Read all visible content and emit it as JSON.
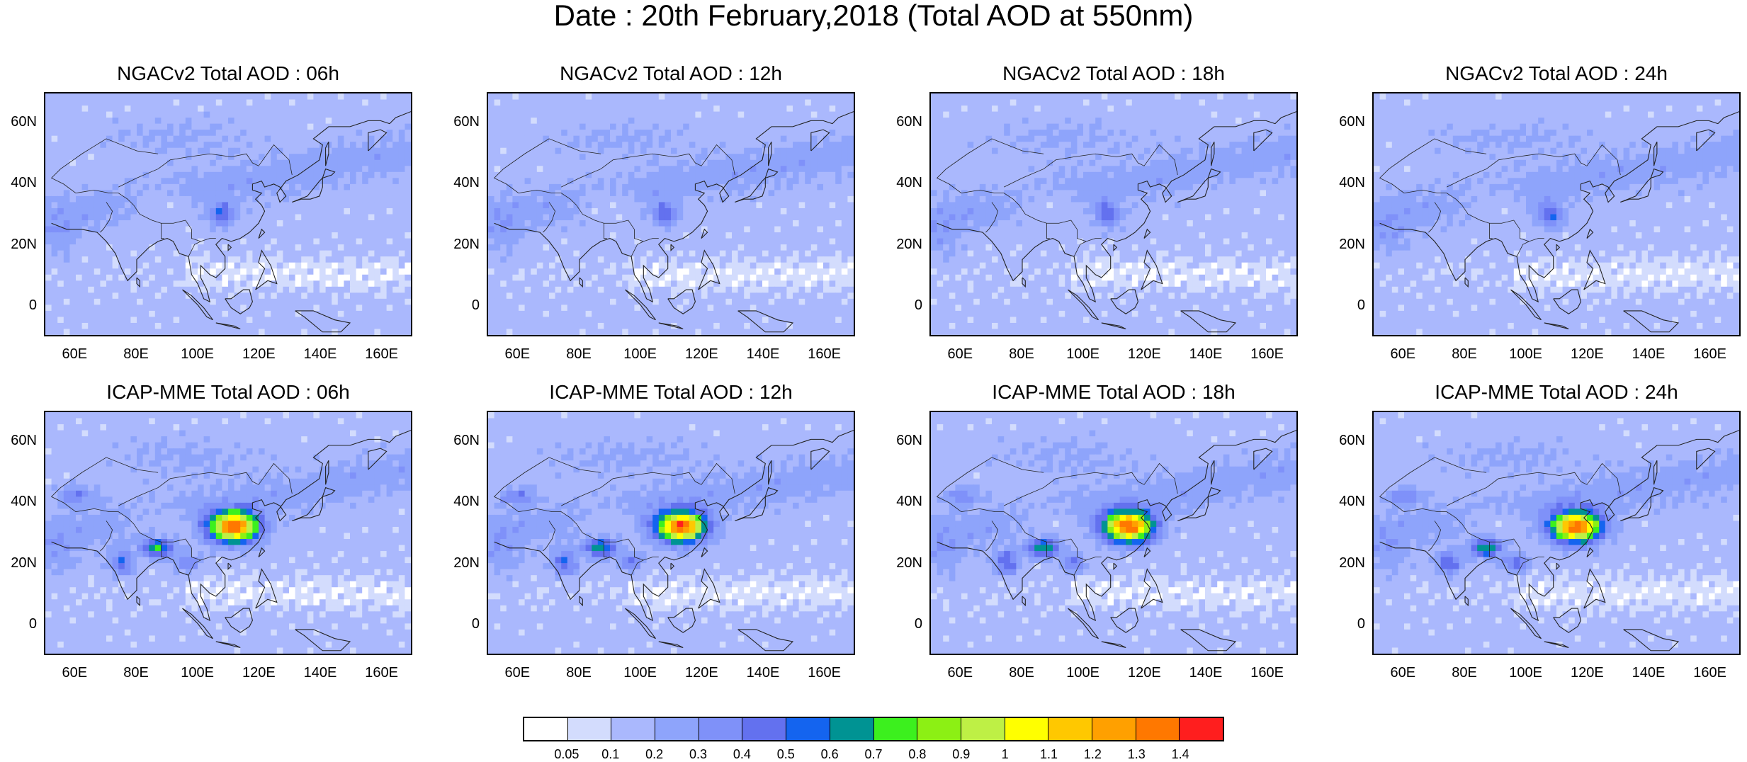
{
  "title": "Date : 20th February,2018 (Total AOD at 550nm)",
  "panels": [
    {
      "title": "NGACv2 Total AOD : 06h",
      "model": "NGACv2",
      "hour": "06h"
    },
    {
      "title": "NGACv2 Total AOD : 12h",
      "model": "NGACv2",
      "hour": "12h"
    },
    {
      "title": "NGACv2 Total AOD : 18h",
      "model": "NGACv2",
      "hour": "18h"
    },
    {
      "title": "NGACv2 Total AOD : 24h",
      "model": "NGACv2",
      "hour": "24h"
    },
    {
      "title": "ICAP-MME Total AOD : 06h",
      "model": "ICAP-MME",
      "hour": "06h"
    },
    {
      "title": "ICAP-MME Total AOD : 12h",
      "model": "ICAP-MME",
      "hour": "12h"
    },
    {
      "title": "ICAP-MME Total AOD : 18h",
      "model": "ICAP-MME",
      "hour": "18h"
    },
    {
      "title": "ICAP-MME Total AOD : 24h",
      "model": "ICAP-MME",
      "hour": "24h"
    }
  ],
  "lat_ticks": [
    "60N",
    "40N",
    "20N",
    "0"
  ],
  "lon_ticks": [
    "60E",
    "80E",
    "100E",
    "120E",
    "140E",
    "160E"
  ],
  "colorbar": {
    "labels": [
      "0.05",
      "0.1",
      "0.2",
      "0.3",
      "0.4",
      "0.5",
      "0.6",
      "0.7",
      "0.8",
      "0.9",
      "1",
      "1.1",
      "1.2",
      "1.3",
      "1.4"
    ],
    "colors": [
      "#ffffff",
      "#d3dcfd",
      "#aab8fd",
      "#8ea4fb",
      "#7f91f9",
      "#6371ef",
      "#1464ef",
      "#009393",
      "#3cf01e",
      "#8cf014",
      "#bef045",
      "#ffff00",
      "#ffc800",
      "#ffa000",
      "#ff7800",
      "#ff1e1e"
    ]
  }
}
